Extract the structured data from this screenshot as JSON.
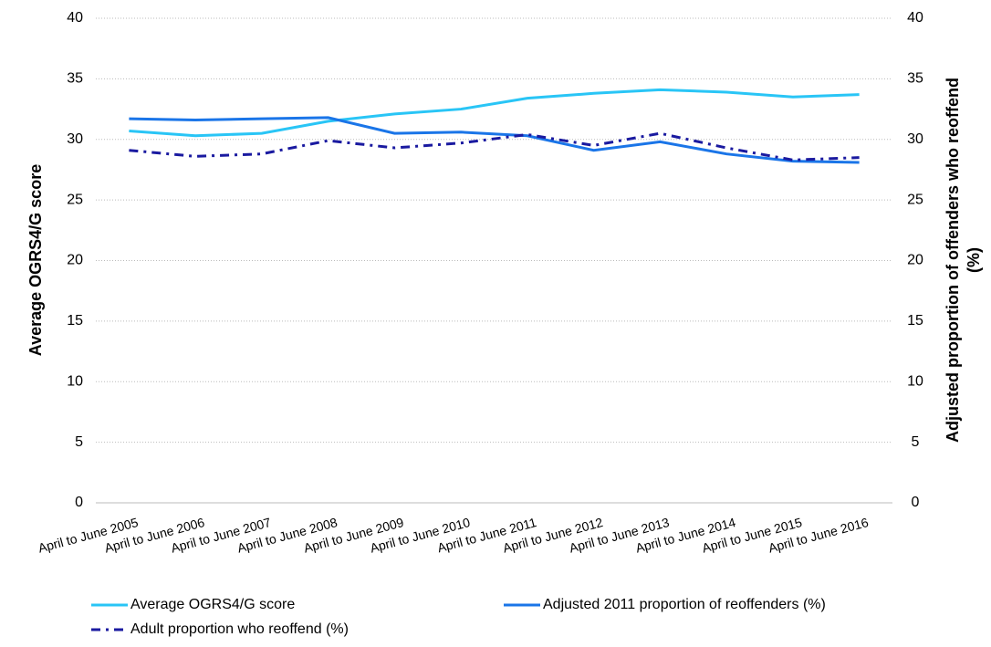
{
  "chart_data": {
    "type": "line",
    "categories": [
      "April to June 2005",
      "April to June 2006",
      "April to June 2007",
      "April to June 2008",
      "April to June 2009",
      "April to June 2010",
      "April to June 2011",
      "April to June 2012",
      "April to June 2013",
      "April to June 2014",
      "April to June 2015",
      "April to June 2016"
    ],
    "y_label": "Average OGRS4/G score",
    "y2_label": [
      "Adjusted proportion of offenders who reoffend",
      "(%)"
    ],
    "ylim": [
      0,
      40
    ],
    "yticks": [
      0,
      5,
      10,
      15,
      20,
      25,
      30,
      35,
      40
    ],
    "y2lim": [
      0,
      40
    ],
    "y2ticks": [
      0,
      5,
      10,
      15,
      20,
      25,
      30,
      35,
      40
    ],
    "grid": true,
    "series": [
      {
        "name": "Average OGRS4/G score",
        "color": "#29c5f6",
        "style": "solid",
        "axis": "y",
        "values": [
          30.7,
          30.3,
          30.5,
          31.5,
          32.1,
          32.5,
          33.4,
          33.8,
          34.1,
          33.9,
          33.5,
          33.7
        ]
      },
      {
        "name": "Adjusted 2011 proportion of reoffenders (%)",
        "color": "#1a75e8",
        "style": "solid",
        "axis": "y2",
        "values": [
          31.7,
          31.6,
          31.7,
          31.8,
          30.5,
          30.6,
          30.3,
          29.1,
          29.8,
          28.8,
          28.2,
          28.1
        ]
      },
      {
        "name": "Adult proportion who reoffend (%)",
        "color": "#1a1aa0",
        "style": "dashdot",
        "axis": "y2",
        "values": [
          29.1,
          28.6,
          28.8,
          29.9,
          29.3,
          29.7,
          30.4,
          29.5,
          30.5,
          29.3,
          28.3,
          28.5
        ]
      }
    ]
  }
}
